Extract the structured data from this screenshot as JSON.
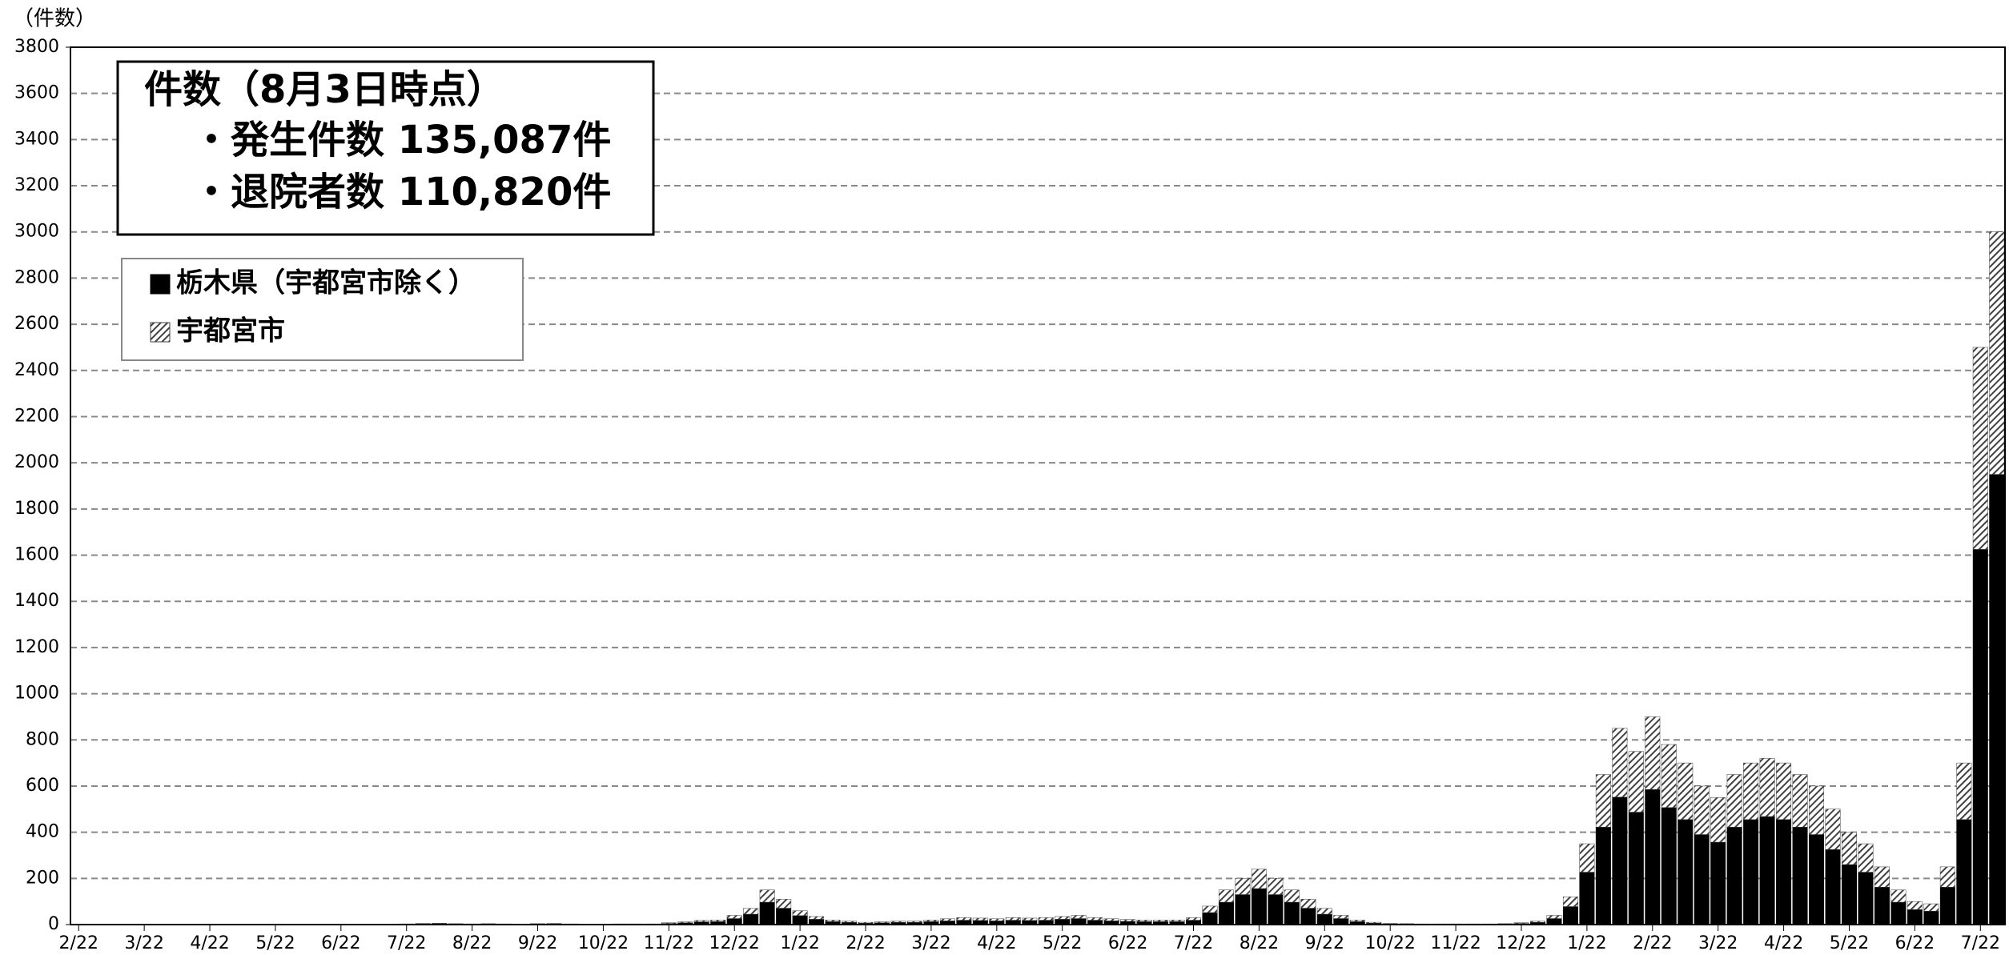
{
  "chart_data": {
    "type": "bar",
    "stacked": true,
    "y_label": "（件数）",
    "annotation": {
      "title": "件数（8月3日時点）",
      "lines": [
        "・発生件数 135,087件",
        "・退院者数 110,820件"
      ]
    },
    "categories": [
      "2/22",
      null,
      null,
      null,
      "3/22",
      null,
      null,
      null,
      "4/22",
      null,
      null,
      null,
      "5/22",
      null,
      null,
      null,
      "6/22",
      null,
      null,
      null,
      "7/22",
      null,
      null,
      null,
      "8/22",
      null,
      null,
      null,
      "9/22",
      null,
      null,
      null,
      "10/22",
      null,
      null,
      null,
      "11/22",
      null,
      null,
      null,
      "12/22",
      null,
      null,
      null,
      "1/22",
      null,
      null,
      null,
      "2/22",
      null,
      null,
      null,
      "3/22",
      null,
      null,
      null,
      "4/22",
      null,
      null,
      null,
      "5/22",
      null,
      null,
      null,
      "6/22",
      null,
      null,
      null,
      "7/22",
      null,
      null,
      null,
      "8/22",
      null,
      null,
      null,
      "9/22",
      null,
      null,
      null,
      "10/22",
      null,
      null,
      null,
      "11/22",
      null,
      null,
      null,
      "12/22",
      null,
      null,
      null,
      "1/22",
      null,
      null,
      null,
      "2/22",
      null,
      null,
      null,
      "3/22",
      null,
      null,
      null,
      "4/22",
      null,
      null,
      null,
      "5/22",
      null,
      null,
      null,
      "6/22",
      null,
      null,
      null,
      "7/22",
      null
    ],
    "series": [
      {
        "name": "栃木県（宇都宮市除く）",
        "color": "#000000",
        "pattern": "solid",
        "values": [
          0,
          0,
          0,
          0,
          1,
          1,
          1,
          1,
          1,
          1,
          1,
          1,
          0,
          0,
          1,
          0,
          1,
          1,
          1,
          1,
          2,
          3,
          4,
          3,
          2,
          3,
          2,
          1,
          3,
          3,
          2,
          1,
          1,
          2,
          2,
          2,
          5,
          8,
          12,
          13,
          26,
          45,
          97,
          71,
          39,
          23,
          13,
          10,
          6,
          8,
          10,
          10,
          13,
          16,
          19,
          18,
          16,
          19,
          18,
          19,
          23,
          26,
          19,
          16,
          14,
          13,
          13,
          13,
          19,
          52,
          97,
          130,
          156,
          130,
          97,
          71,
          45,
          26,
          13,
          6,
          3,
          3,
          2,
          2,
          2,
          2,
          2,
          3,
          5,
          10,
          26,
          78,
          227,
          422,
          552,
          487,
          585,
          507,
          455,
          390,
          357,
          422,
          455,
          468,
          455,
          422,
          390,
          325,
          260,
          227,
          162,
          97,
          65,
          58,
          162,
          455,
          1625,
          1950
        ]
      },
      {
        "name": "宇都宮市",
        "color": "#404040",
        "pattern": "hatch",
        "values": [
          0,
          0,
          0,
          0,
          1,
          0,
          1,
          0,
          1,
          0,
          0,
          0,
          0,
          0,
          0,
          0,
          0,
          1,
          0,
          1,
          1,
          2,
          2,
          1,
          1,
          1,
          1,
          1,
          1,
          2,
          1,
          1,
          1,
          1,
          1,
          1,
          3,
          4,
          6,
          7,
          14,
          25,
          53,
          39,
          21,
          12,
          7,
          5,
          4,
          4,
          5,
          5,
          7,
          9,
          11,
          10,
          9,
          11,
          10,
          11,
          12,
          14,
          11,
          9,
          8,
          7,
          7,
          7,
          11,
          28,
          53,
          70,
          84,
          70,
          53,
          39,
          25,
          14,
          7,
          4,
          2,
          1,
          1,
          1,
          1,
          1,
          1,
          1,
          3,
          5,
          14,
          42,
          123,
          228,
          298,
          263,
          315,
          273,
          245,
          210,
          193,
          228,
          245,
          252,
          245,
          228,
          210,
          175,
          140,
          123,
          88,
          53,
          35,
          32,
          88,
          245,
          875,
          1050
        ]
      }
    ],
    "ylim": [
      0,
      3800
    ],
    "yticks": [
      0,
      200,
      400,
      600,
      800,
      1000,
      1200,
      1400,
      1600,
      1800,
      2000,
      2200,
      2400,
      2600,
      2800,
      3000,
      3200,
      3400,
      3600,
      3800
    ],
    "grid": true
  }
}
